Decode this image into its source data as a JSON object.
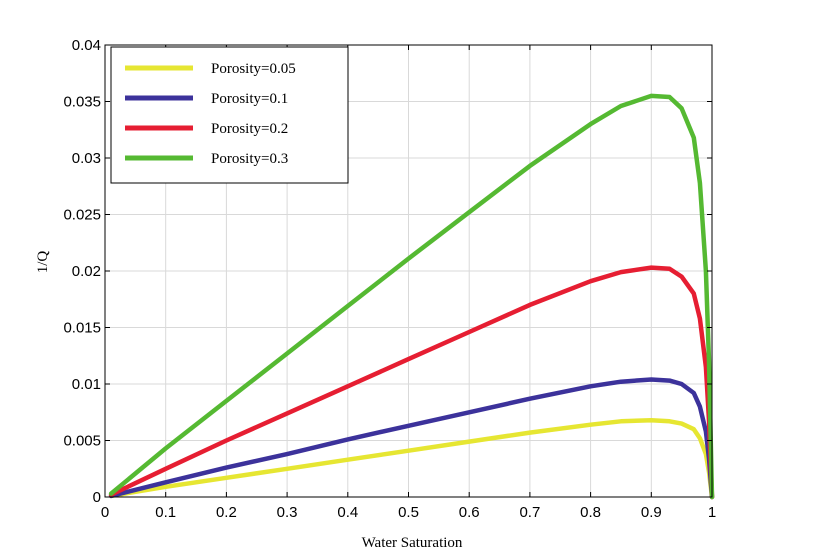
{
  "chart_data": {
    "type": "line",
    "title": "",
    "xlabel": "Water Saturation",
    "ylabel": "1/Q",
    "xlim": [
      0,
      1
    ],
    "ylim": [
      0,
      0.04
    ],
    "x_ticks": [
      "0",
      "0.1",
      "0.2",
      "0.3",
      "0.4",
      "0.5",
      "0.6",
      "0.7",
      "0.8",
      "0.9",
      "1"
    ],
    "y_ticks": [
      "0",
      "0.005",
      "0.01",
      "0.015",
      "0.02",
      "0.025",
      "0.03",
      "0.035",
      "0.04"
    ],
    "grid": true,
    "legend_position": "top-left",
    "x": [
      0.01,
      0.1,
      0.2,
      0.3,
      0.4,
      0.5,
      0.6,
      0.7,
      0.8,
      0.85,
      0.9,
      0.93,
      0.95,
      0.97,
      0.98,
      0.99,
      0.995,
      1.0
    ],
    "series": [
      {
        "name": "Porosity=0.05",
        "color": "#e6e632",
        "values": [
          0.0001,
          0.0009,
          0.0017,
          0.0025,
          0.0033,
          0.0041,
          0.0049,
          0.0057,
          0.0064,
          0.0067,
          0.0068,
          0.0067,
          0.0065,
          0.006,
          0.0052,
          0.0038,
          0.0022,
          0.0
        ]
      },
      {
        "name": "Porosity=0.1",
        "color": "#3c329b",
        "values": [
          0.0001,
          0.0013,
          0.0026,
          0.0038,
          0.0051,
          0.0063,
          0.0075,
          0.0087,
          0.0098,
          0.0102,
          0.0104,
          0.0103,
          0.01,
          0.0092,
          0.008,
          0.0058,
          0.0034,
          0.0
        ]
      },
      {
        "name": "Porosity=0.2",
        "color": "#e61e32",
        "values": [
          0.0002,
          0.0025,
          0.005,
          0.0074,
          0.0098,
          0.0122,
          0.0146,
          0.017,
          0.0191,
          0.0199,
          0.0203,
          0.0202,
          0.0195,
          0.018,
          0.0158,
          0.0115,
          0.0068,
          0.0
        ]
      },
      {
        "name": "Porosity=0.3",
        "color": "#55b932",
        "values": [
          0.0003,
          0.0043,
          0.0085,
          0.0127,
          0.0169,
          0.0211,
          0.0252,
          0.0293,
          0.033,
          0.0346,
          0.0355,
          0.0354,
          0.0344,
          0.0318,
          0.0278,
          0.02,
          0.012,
          0.0
        ]
      }
    ]
  }
}
